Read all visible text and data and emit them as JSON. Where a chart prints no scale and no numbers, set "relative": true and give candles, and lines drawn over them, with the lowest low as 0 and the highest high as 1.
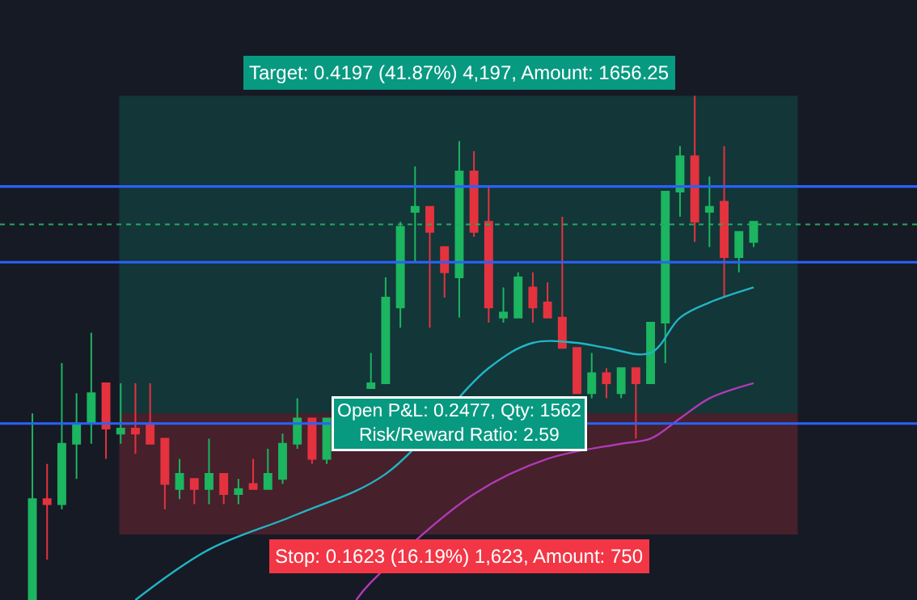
{
  "chart_data": {
    "type": "candlestick",
    "relative": true,
    "categories": [
      null,
      null,
      null,
      null,
      null,
      null,
      null,
      null,
      null,
      null,
      null,
      null,
      null,
      null,
      null,
      null,
      null,
      null,
      null,
      null,
      null,
      null,
      null,
      null,
      null,
      null,
      null,
      null,
      null,
      null,
      null,
      null,
      null,
      null,
      null,
      null,
      null,
      null,
      null,
      null,
      null,
      null,
      null,
      null,
      null,
      null,
      null,
      null,
      null,
      null
    ],
    "ohlc": [
      [
        0,
        0.37,
        0,
        0.2
      ],
      [
        0.2,
        0.27,
        0.08,
        0.19
      ],
      [
        0.19,
        0.47,
        0.18,
        0.31
      ],
      [
        0.31,
        0.41,
        0.24,
        0.35
      ],
      [
        0.35,
        0.53,
        0.31,
        0.41
      ],
      [
        0.43,
        0.43,
        0.28,
        0.34
      ],
      [
        0.33,
        0.43,
        0.31,
        0.34
      ],
      [
        0.34,
        0.43,
        0.29,
        0.33
      ],
      [
        0.35,
        0.43,
        0.31,
        0.31
      ],
      [
        0.32,
        0.32,
        0.18,
        0.23
      ],
      [
        0.22,
        0.28,
        0.2,
        0.25
      ],
      [
        0.24,
        0.24,
        0.19,
        0.22
      ],
      [
        0.22,
        0.32,
        0.19,
        0.25
      ],
      [
        0.25,
        0.25,
        0.19,
        0.21
      ],
      [
        0.21,
        0.24,
        0.19,
        0.22
      ],
      [
        0.23,
        0.28,
        0.22,
        0.22
      ],
      [
        0.22,
        0.3,
        0.22,
        0.25
      ],
      [
        0.24,
        0.33,
        0.23,
        0.31
      ],
      [
        0.31,
        0.4,
        0.3,
        0.36
      ],
      [
        0.36,
        0.36,
        0.27,
        0.28
      ],
      [
        0.28,
        0.36,
        0.27,
        0.36
      ],
      [
        null,
        null,
        null,
        null
      ],
      [
        null,
        null,
        null,
        null
      ],
      [
        0.42,
        0.49,
        0.42,
        0.43
      ],
      [
        0.43,
        0.64,
        0.43,
        0.6
      ],
      [
        0.58,
        0.75,
        0.54,
        0.74
      ],
      [
        0.77,
        0.86,
        0.67,
        0.78
      ],
      [
        0.78,
        0.78,
        0.54,
        0.73
      ],
      [
        0.7,
        0.7,
        0.6,
        0.65
      ],
      [
        0.64,
        0.91,
        0.56,
        0.85
      ],
      [
        0.85,
        0.89,
        0.72,
        0.73
      ],
      [
        0.75,
        0.82,
        0.55,
        0.58
      ],
      [
        0.56,
        0.62,
        0.55,
        0.57
      ],
      [
        0.56,
        0.65,
        0.56,
        0.64
      ],
      [
        0.62,
        0.65,
        0.55,
        0.58
      ],
      [
        0.59,
        0.63,
        0.56,
        0.56
      ],
      [
        0.56,
        0.76,
        0.5,
        0.5
      ],
      [
        0.5,
        0.5,
        0.41,
        0.41
      ],
      [
        0.41,
        0.49,
        0.4,
        0.45
      ],
      [
        0.45,
        0.46,
        0.4,
        0.43
      ],
      [
        0.41,
        0.46,
        0.4,
        0.46
      ],
      [
        0.46,
        0.46,
        0.32,
        0.43
      ],
      [
        0.43,
        0.55,
        0.43,
        0.55
      ],
      [
        0.55,
        0.81,
        0.47,
        0.81
      ],
      [
        0.81,
        0.9,
        0.76,
        0.88
      ],
      [
        0.88,
        1,
        0.71,
        0.75
      ],
      [
        0.77,
        0.84,
        0.7,
        0.78
      ],
      [
        0.79,
        0.9,
        0.6,
        0.68
      ],
      [
        0.68,
        0.73,
        0.65,
        0.73
      ],
      [
        0.71,
        0.75,
        0.7,
        0.75
      ]
    ],
    "series": [
      {
        "type": "line",
        "color": "#22b5c4",
        "values": [
          null,
          null,
          null,
          null,
          null,
          null,
          null,
          0,
          null,
          null,
          null,
          null,
          0.1,
          null,
          null,
          null,
          null,
          null,
          0.17,
          null,
          null,
          null,
          null,
          null,
          0.25,
          null,
          null,
          null,
          null,
          null,
          null,
          0.46,
          null,
          null,
          0.51,
          null,
          null,
          0.51,
          null,
          0.5,
          null,
          null,
          0.49,
          null,
          0.56,
          null,
          0.59,
          null,
          null,
          0.62
        ]
      },
      {
        "type": "line",
        "color": "#b03ab5",
        "values": [
          null,
          null,
          null,
          null,
          null,
          null,
          null,
          null,
          null,
          null,
          null,
          null,
          null,
          null,
          null,
          null,
          null,
          null,
          null,
          null,
          null,
          null,
          0,
          0.035,
          null,
          null,
          null,
          null,
          null,
          null,
          0.21,
          null,
          null,
          null,
          null,
          0.28,
          null,
          null,
          null,
          null,
          0.31,
          null,
          0.32,
          null,
          0.36,
          null,
          0.4,
          null,
          null,
          0.43
        ]
      }
    ],
    "bands": [
      {
        "axis": "y",
        "from": 0.37,
        "to": 1,
        "label": "Target: 0.4197 (41.87%) 4,197, Amount: 1656.25",
        "color": "#089981"
      },
      {
        "axis": "y",
        "from": 0.13,
        "to": 0.37,
        "label": "Stop: 0.1623 (16.19%) 1,623, Amount: 750",
        "color": "#f23645"
      }
    ],
    "ref_lines": [
      {
        "axis": "y",
        "value": 0.82,
        "color": "#2962ff"
      },
      {
        "axis": "y",
        "value": 0.67,
        "color": "#2962ff"
      },
      {
        "axis": "y",
        "value": 0.35,
        "color": "#2962ff"
      },
      {
        "axis": "y",
        "value": 0.745,
        "color": "#22ab5f",
        "line_style": "dotted"
      }
    ],
    "annotations": [
      "Open P&L: 0.2477, Qty: 1562\nRisk/Reward Ratio: 2.59"
    ]
  }
}
